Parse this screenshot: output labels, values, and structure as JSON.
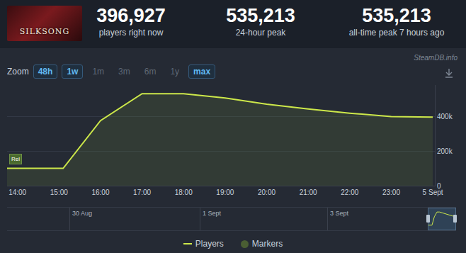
{
  "header": {
    "logo_text": "SILKSONG",
    "stats": [
      {
        "value": "396,927",
        "label": "players right now"
      },
      {
        "value": "535,213",
        "label": "24-hour peak"
      },
      {
        "value": "535,213",
        "label": "all-time peak 7 hours ago"
      }
    ]
  },
  "watermark": "SteamDB.info",
  "zoom": {
    "label": "Zoom",
    "options": [
      {
        "text": "48h",
        "active": true
      },
      {
        "text": "1w",
        "active": true
      },
      {
        "text": "1m",
        "active": false
      },
      {
        "text": "3m",
        "active": false
      },
      {
        "text": "6m",
        "active": false
      },
      {
        "text": "1y",
        "active": false
      },
      {
        "text": "max",
        "active": true
      }
    ]
  },
  "navigator": {
    "labels": [
      "30 Aug",
      "1 Sept",
      "3 Sept"
    ]
  },
  "markers_legend": "Markers",
  "chart_data": {
    "type": "line",
    "x": [
      13.75,
      14,
      15,
      15.1,
      16,
      17,
      18,
      19,
      20,
      21,
      22,
      23,
      24
    ],
    "series": [
      {
        "name": "Players",
        "color": "#cde84a",
        "values": [
          100000,
          100000,
          100000,
          100000,
          375000,
          530000,
          530000,
          505000,
          470000,
          442000,
          418000,
          398000,
          395000
        ]
      }
    ],
    "xlim": [
      13.75,
      24.05
    ],
    "xticks": [
      {
        "value": 14,
        "label": "14:00"
      },
      {
        "value": 15,
        "label": "15:00"
      },
      {
        "value": 16,
        "label": "16:00"
      },
      {
        "value": 17,
        "label": "17:00"
      },
      {
        "value": 18,
        "label": "18:00"
      },
      {
        "value": 19,
        "label": "19:00"
      },
      {
        "value": 20,
        "label": "20:00"
      },
      {
        "value": 21,
        "label": "21:00"
      },
      {
        "value": 22,
        "label": "22:00"
      },
      {
        "value": 23,
        "label": "23:00"
      },
      {
        "value": 24,
        "label": "5 Sept"
      }
    ],
    "ylim": [
      0,
      580000
    ],
    "yticks": [
      0,
      {
        "value": 200000,
        "label": "200k"
      },
      {
        "value": 400000,
        "label": "400k"
      }
    ],
    "grid": true,
    "annotations": [
      {
        "text": "Rel",
        "x": 13.8,
        "y": 155000
      }
    ]
  }
}
